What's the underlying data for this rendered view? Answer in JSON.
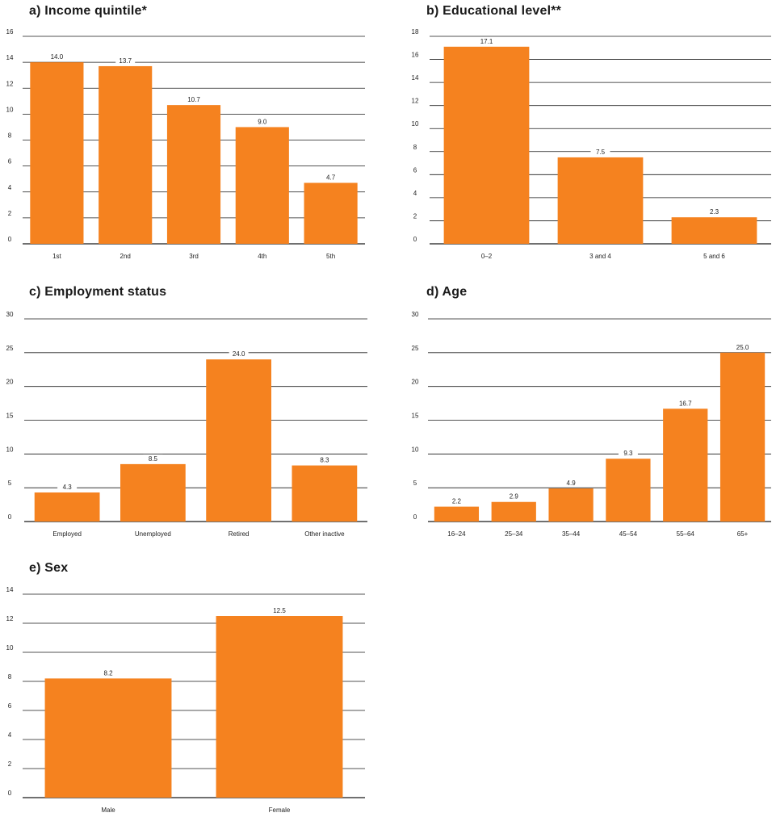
{
  "colors": {
    "bar": "#F5821F",
    "grid": "#1a1a1a",
    "background": "#ffffff"
  },
  "chart_data": [
    {
      "id": "a",
      "type": "bar",
      "title": "a) Income quintile*",
      "categories": [
        "1st",
        "2nd",
        "3rd",
        "4th",
        "5th"
      ],
      "values": [
        14.0,
        13.7,
        10.7,
        9.0,
        4.7
      ],
      "value_labels": [
        "14.0",
        "13.7",
        "10.7",
        "9.0",
        "4.7"
      ],
      "yticks": [
        0,
        2,
        4,
        6,
        8,
        10,
        12,
        14,
        16
      ],
      "ylim": [
        0,
        16
      ],
      "xlabel": "",
      "ylabel": "",
      "grid": true
    },
    {
      "id": "b",
      "type": "bar",
      "title": "b) Educational level**",
      "categories": [
        "0–2",
        "3 and 4",
        "5 and 6"
      ],
      "values": [
        17.1,
        7.5,
        2.3
      ],
      "value_labels": [
        "17.1",
        "7.5",
        "2.3"
      ],
      "yticks": [
        0,
        2,
        4,
        6,
        8,
        10,
        12,
        14,
        16,
        18
      ],
      "ylim": [
        0,
        18
      ],
      "xlabel": "",
      "ylabel": "",
      "grid": true
    },
    {
      "id": "c",
      "type": "bar",
      "title": "c) Employment status",
      "categories": [
        "Employed",
        "Unemployed",
        "Retired",
        "Other inactive"
      ],
      "values": [
        4.3,
        8.5,
        24.0,
        8.3
      ],
      "value_labels": [
        "4.3",
        "8.5",
        "24.0",
        "8.3"
      ],
      "yticks": [
        0,
        5,
        10,
        15,
        20,
        25,
        30
      ],
      "ylim": [
        0,
        30
      ],
      "xlabel": "",
      "ylabel": "",
      "grid": true
    },
    {
      "id": "d",
      "type": "bar",
      "title": "d) Age",
      "categories": [
        "16–24",
        "25–34",
        "35–44",
        "45–54",
        "55–64",
        "65+"
      ],
      "values": [
        2.2,
        2.9,
        4.9,
        9.3,
        16.7,
        25.0
      ],
      "value_labels": [
        "2.2",
        "2.9",
        "4.9",
        "9.3",
        "16.7",
        "25.0"
      ],
      "yticks": [
        0,
        5,
        10,
        15,
        20,
        25,
        30
      ],
      "ylim": [
        0,
        30
      ],
      "xlabel": "",
      "ylabel": "",
      "grid": true
    },
    {
      "id": "e",
      "type": "bar",
      "title": "e) Sex",
      "categories": [
        "Male",
        "Female"
      ],
      "values": [
        8.2,
        12.5
      ],
      "value_labels": [
        "8.2",
        "12.5"
      ],
      "yticks": [
        0,
        2,
        4,
        6,
        8,
        10,
        12,
        14
      ],
      "ylim": [
        0,
        14
      ],
      "xlabel": "",
      "ylabel": "",
      "grid": true
    }
  ]
}
